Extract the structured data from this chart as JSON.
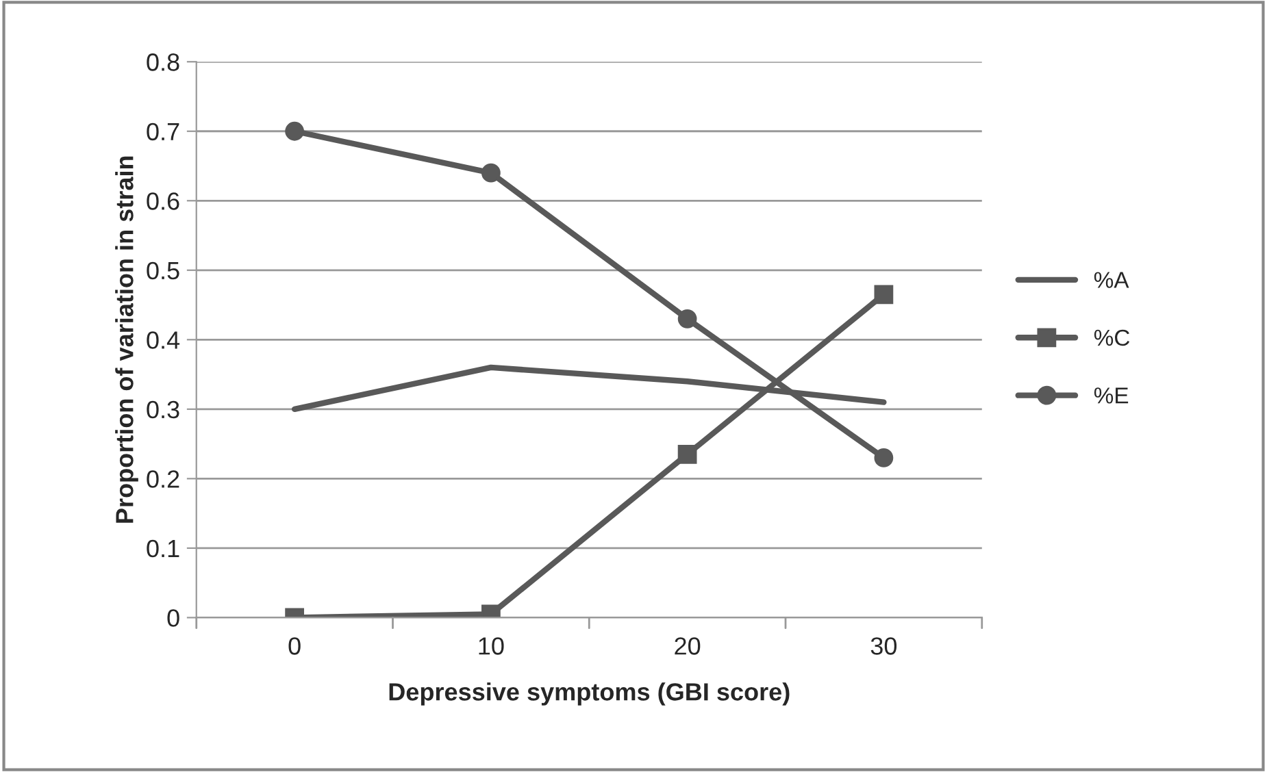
{
  "chart_data": {
    "type": "line",
    "xlabel": "Depressive symptoms (GBI score)",
    "ylabel": "Proportion of variation in strain",
    "categories": [
      "0",
      "10",
      "20",
      "30"
    ],
    "series": [
      {
        "name": "%A",
        "color": "#595959",
        "values": [
          0.3,
          0.36,
          0.34,
          0.31
        ],
        "marker": "none"
      },
      {
        "name": "%C",
        "color": "#595959",
        "values": [
          0.0,
          0.005,
          0.235,
          0.465
        ],
        "marker": "square"
      },
      {
        "name": "%E",
        "color": "#595959",
        "values": [
          0.7,
          0.64,
          0.43,
          0.23
        ],
        "marker": "circle"
      }
    ],
    "ylim": [
      0,
      0.8
    ],
    "yticks": [
      0,
      {
        "value": 0.1,
        "label": "0.1"
      },
      {
        "value": 0.2,
        "label": "0.2"
      },
      {
        "value": 0.3,
        "label": "0.3"
      },
      {
        "value": 0.4,
        "label": "0.4"
      },
      {
        "value": 0.5,
        "label": "0.5"
      },
      {
        "value": 0.6,
        "label": "0.6"
      },
      {
        "value": 0.7,
        "label": "0.7"
      },
      {
        "value": 0.8,
        "label": "0.8"
      }
    ],
    "grid": "y",
    "legend": "right"
  }
}
